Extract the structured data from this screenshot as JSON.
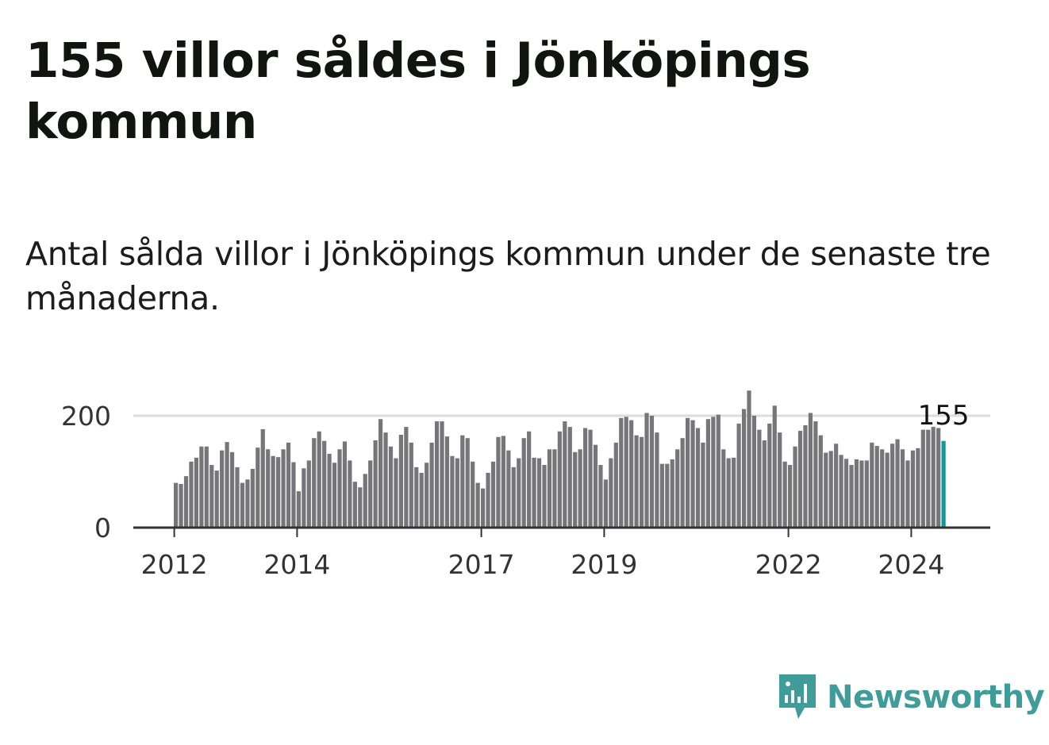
{
  "title": "155 villor såldes i Jönköpings kommun",
  "subtitle": "Antal sålda villor i Jönköpings kommun under de senaste tre månaderna.",
  "brand": {
    "name": "Newsworthy",
    "color": "#3f9c99"
  },
  "chart_data": {
    "type": "bar",
    "title": "155 villor såldes i Jönköpings kommun",
    "subtitle": "Antal sålda villor i Jönköpings kommun under de senaste tre månaderna.",
    "xlabel": "",
    "ylabel": "",
    "ylim": [
      0,
      250
    ],
    "yticks": [
      0,
      200
    ],
    "grid": true,
    "xtick_labels": [
      {
        "label": "2012",
        "index": 0
      },
      {
        "label": "2014",
        "index": 24
      },
      {
        "label": "2017",
        "index": 60
      },
      {
        "label": "2019",
        "index": 84
      },
      {
        "label": "2022",
        "index": 120
      },
      {
        "label": "2024",
        "index": 144
      }
    ],
    "start": "2012-01",
    "bar_color": "#76767a",
    "highlight_color": "#0d9a98",
    "highlight_label": "155",
    "values": [
      80,
      78,
      92,
      118,
      125,
      145,
      145,
      112,
      102,
      138,
      153,
      135,
      108,
      80,
      86,
      105,
      143,
      176,
      140,
      128,
      126,
      140,
      152,
      117,
      65,
      106,
      120,
      160,
      172,
      155,
      132,
      116,
      140,
      154,
      120,
      82,
      72,
      96,
      120,
      156,
      194,
      170,
      145,
      124,
      166,
      180,
      152,
      108,
      98,
      116,
      152,
      190,
      190,
      163,
      128,
      124,
      165,
      160,
      118,
      80,
      70,
      98,
      118,
      162,
      164,
      138,
      108,
      124,
      160,
      172,
      125,
      124,
      112,
      140,
      140,
      172,
      190,
      180,
      135,
      140,
      178,
      175,
      148,
      112,
      86,
      124,
      152,
      196,
      198,
      192,
      165,
      162,
      205,
      200,
      170,
      114,
      114,
      122,
      140,
      160,
      196,
      192,
      178,
      152,
      194,
      198,
      202,
      140,
      124,
      125,
      186,
      212,
      245,
      200,
      175,
      156,
      186,
      218,
      170,
      118,
      112,
      145,
      173,
      183,
      205,
      190,
      165,
      134,
      137,
      150,
      130,
      123,
      112,
      122,
      120,
      120,
      152,
      146,
      140,
      134,
      150,
      158,
      140,
      120,
      138,
      142,
      175,
      175,
      180,
      178,
      155
    ]
  }
}
